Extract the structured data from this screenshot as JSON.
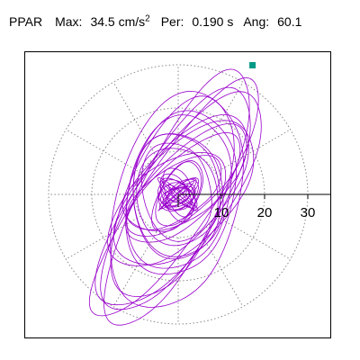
{
  "header": {
    "station_label": "PPAR",
    "max_label": "Max:",
    "max_value": "34.5",
    "max_unit": "cm/s",
    "max_unit_exponent": "2",
    "per_label": "Per:",
    "per_value": "0.190 s",
    "ang_label": "Ang:",
    "ang_value": "60.1"
  },
  "chart_data": {
    "type": "scatter",
    "title": "PPAR  Max: 34.5 cm/s2  Per: 0.190 s  Ang: 60.1",
    "xlabel": "",
    "ylabel": "",
    "units": "cm/s2",
    "grid": "polar, dotted",
    "polar_rings": [
      10,
      20,
      30
    ],
    "radial_angles_deg": [
      0,
      30,
      60,
      90,
      120,
      150,
      180,
      210,
      240,
      270,
      300,
      330
    ],
    "tick_labels": [
      "10",
      "20",
      "30"
    ],
    "xlim": [
      -36,
      36
    ],
    "ylim": [
      -34,
      34
    ],
    "max_amplitude": 34.5,
    "max_angle_deg": 60.1,
    "max_point": {
      "x": 17.2,
      "y": 29.9
    },
    "particle_motion_envelope": [
      {
        "a": 34.5,
        "b": 10.0,
        "angle_deg": 60.1,
        "cx": 0.0,
        "cy": -1.0
      },
      {
        "a": 30.0,
        "b": 13.0,
        "angle_deg": 58.0,
        "cx": 0.5,
        "cy": -1.5
      },
      {
        "a": 26.0,
        "b": 15.0,
        "angle_deg": 70.0,
        "cx": -1.0,
        "cy": -1.0
      },
      {
        "a": 22.0,
        "b": 12.0,
        "angle_deg": 50.0,
        "cx": 1.0,
        "cy": 0.0
      },
      {
        "a": 20.0,
        "b": 14.0,
        "angle_deg": 80.0,
        "cx": 0.0,
        "cy": 0.5
      },
      {
        "a": 18.0,
        "b": 8.0,
        "angle_deg": 45.0,
        "cx": 2.0,
        "cy": 2.0
      },
      {
        "a": 16.0,
        "b": 12.0,
        "angle_deg": 95.0,
        "cx": 0.0,
        "cy": 0.0
      },
      {
        "a": 14.0,
        "b": 8.0,
        "angle_deg": 30.0,
        "cx": -1.0,
        "cy": 0.0
      },
      {
        "a": 12.0,
        "b": 10.0,
        "angle_deg": 100.0,
        "cx": 0.0,
        "cy": 0.0
      },
      {
        "a": 9.0,
        "b": 5.0,
        "angle_deg": 60.0,
        "cx": 0.0,
        "cy": 0.0
      },
      {
        "a": 6.0,
        "b": 4.0,
        "angle_deg": 110.0,
        "cx": 0.0,
        "cy": 0.0
      },
      {
        "a": 3.5,
        "b": 2.5,
        "angle_deg": 20.0,
        "cx": 0.0,
        "cy": 0.0
      }
    ],
    "trace_color": "#9900cc",
    "marker_color": "#009a88",
    "grid_color": "#888888"
  }
}
